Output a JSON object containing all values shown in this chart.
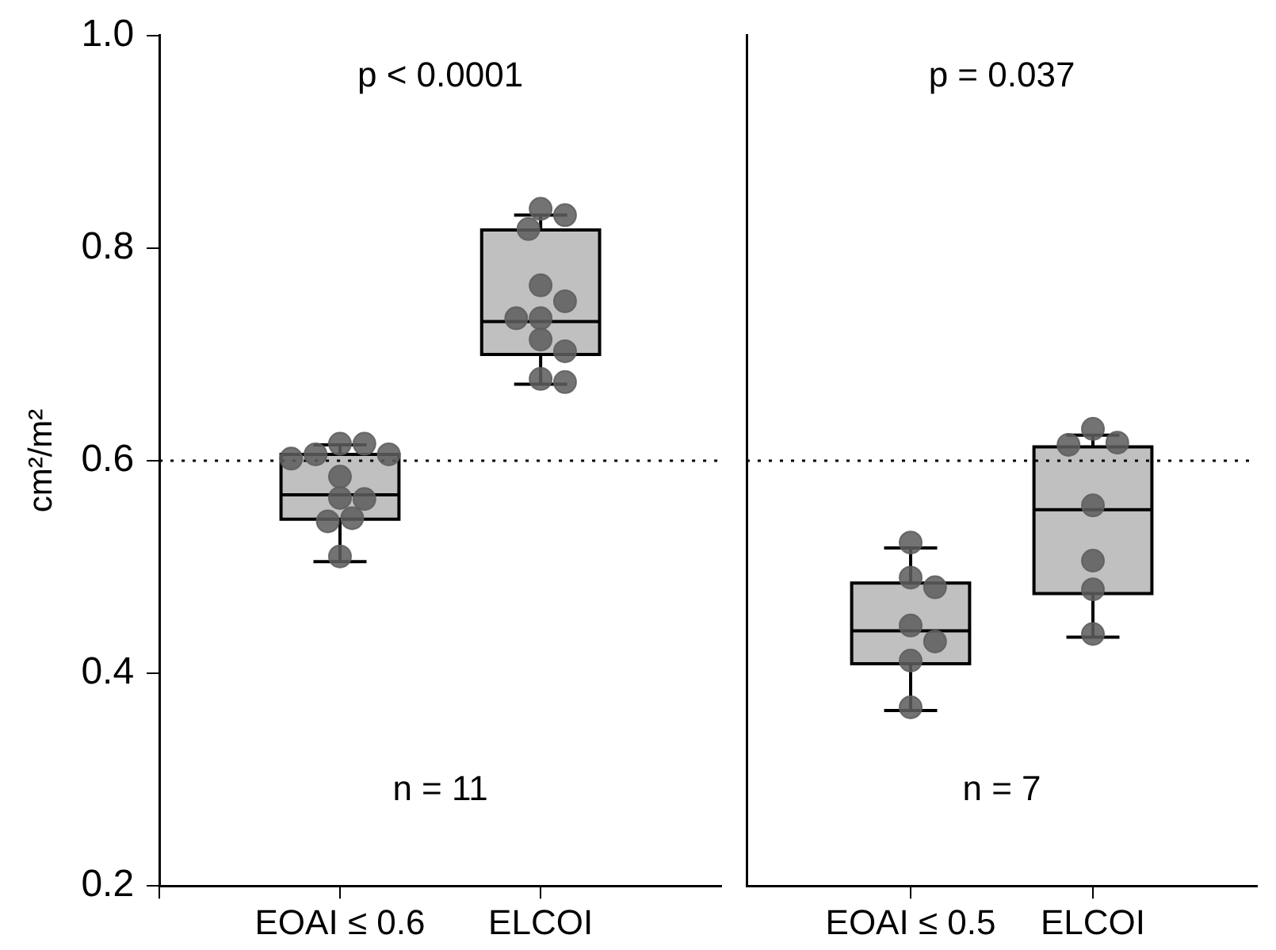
{
  "chart_data": [
    {
      "type": "box",
      "ylabel": "cm²/m²",
      "categories": [
        "EOAI ≤ 0.6",
        "ELCOI"
      ],
      "boxes": [
        {
          "low": 0.505,
          "q1": 0.545,
          "median": 0.568,
          "q3": 0.606,
          "high": 0.615
        },
        {
          "low": 0.672,
          "q1": 0.7,
          "median": 0.731,
          "q3": 0.817,
          "high": 0.831
        }
      ],
      "color": "#c0c0c0",
      "series": [
        {
          "type": "scatter",
          "color": "#5e5e5e",
          "x": [
            "EOAI ≤ 0.6",
            "EOAI ≤ 0.6",
            "EOAI ≤ 0.6",
            "EOAI ≤ 0.6",
            "EOAI ≤ 0.6",
            "EOAI ≤ 0.6",
            "EOAI ≤ 0.6",
            "EOAI ≤ 0.6",
            "EOAI ≤ 0.6",
            "EOAI ≤ 0.6",
            "EOAI ≤ 0.6"
          ],
          "values": [
            0.616,
            0.616,
            0.606,
            0.606,
            0.602,
            0.585,
            0.565,
            0.564,
            0.546,
            0.543,
            0.51
          ]
        },
        {
          "type": "scatter",
          "color": "#5e5e5e",
          "x": [
            "ELCOI",
            "ELCOI",
            "ELCOI",
            "ELCOI",
            "ELCOI",
            "ELCOI",
            "ELCOI",
            "ELCOI",
            "ELCOI",
            "ELCOI",
            "ELCOI"
          ],
          "values": [
            0.837,
            0.831,
            0.818,
            0.765,
            0.75,
            0.734,
            0.734,
            0.714,
            0.703,
            0.677,
            0.674
          ]
        }
      ],
      "marker": "circle",
      "ylim": [
        0.2,
        1.0
      ],
      "yticks": [
        0.2,
        0.4,
        0.6,
        0.8,
        {
          "value": 1,
          "label": "1.0"
        }
      ],
      "ref_lines": [
        {
          "axis": "y",
          "value": 0.6,
          "line_style": "dotted",
          "color": "#000000"
        }
      ],
      "annotations": [
        "p < 0.0001",
        "n = 11"
      ],
      "grid": false,
      "legend": false
    },
    {
      "type": "box",
      "categories": [
        "EOAI ≤ 0.5",
        "ELCOI"
      ],
      "boxes": [
        {
          "low": 0.365,
          "q1": 0.409,
          "median": 0.44,
          "q3": 0.485,
          "high": 0.518
        },
        {
          "low": 0.434,
          "q1": 0.475,
          "median": 0.554,
          "q3": 0.613,
          "high": 0.624
        }
      ],
      "color": "#c0c0c0",
      "series": [
        {
          "type": "scatter",
          "color": "#5e5e5e",
          "x": [
            "EOAI ≤ 0.5",
            "EOAI ≤ 0.5",
            "EOAI ≤ 0.5",
            "EOAI ≤ 0.5",
            "EOAI ≤ 0.5",
            "EOAI ≤ 0.5",
            "EOAI ≤ 0.5"
          ],
          "values": [
            0.523,
            0.49,
            0.481,
            0.445,
            0.43,
            0.412,
            0.368
          ]
        },
        {
          "type": "scatter",
          "color": "#5e5e5e",
          "x": [
            "ELCOI",
            "ELCOI",
            "ELCOI",
            "ELCOI",
            "ELCOI",
            "ELCOI",
            "ELCOI"
          ],
          "values": [
            0.63,
            0.617,
            0.615,
            0.558,
            0.506,
            0.479,
            0.437
          ]
        }
      ],
      "marker": "circle",
      "ylim": [
        0.2,
        1.0
      ],
      "yticks": [
        0.2,
        0.4,
        0.6,
        0.8,
        1
      ],
      "tick_labels": "x",
      "ref_lines": [
        {
          "axis": "y",
          "value": 0.6,
          "line_style": "dotted",
          "color": "#000000"
        }
      ],
      "annotations": [
        "p = 0.037",
        "n = 7"
      ],
      "grid": false,
      "legend": false
    }
  ]
}
